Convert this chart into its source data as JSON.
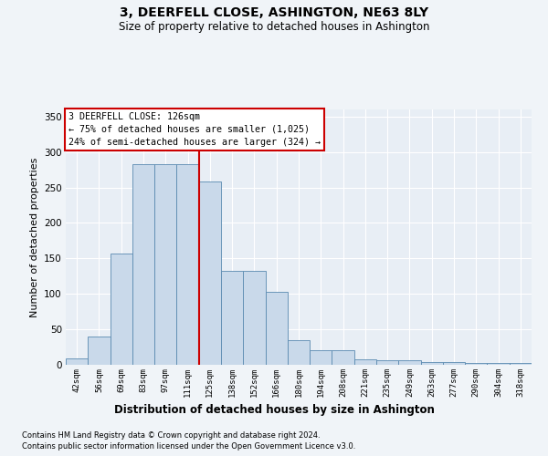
{
  "title": "3, DEERFELL CLOSE, ASHINGTON, NE63 8LY",
  "subtitle": "Size of property relative to detached houses in Ashington",
  "xlabel": "Distribution of detached houses by size in Ashington",
  "ylabel": "Number of detached properties",
  "bar_labels": [
    "42sqm",
    "56sqm",
    "69sqm",
    "83sqm",
    "97sqm",
    "111sqm",
    "125sqm",
    "138sqm",
    "152sqm",
    "166sqm",
    "180sqm",
    "194sqm",
    "208sqm",
    "221sqm",
    "235sqm",
    "249sqm",
    "263sqm",
    "277sqm",
    "290sqm",
    "304sqm",
    "318sqm"
  ],
  "bar_values": [
    9,
    40,
    157,
    283,
    283,
    283,
    258,
    133,
    133,
    103,
    35,
    20,
    20,
    8,
    6,
    6,
    4,
    4,
    2,
    2,
    2
  ],
  "bar_color": "#c9d9ea",
  "bar_edge_color": "#5a8ab0",
  "vline_index": 6,
  "vline_label": "3 DEERFELL CLOSE: 126sqm",
  "annotation_line1": "← 75% of detached houses are smaller (1,025)",
  "annotation_line2": "24% of semi-detached houses are larger (324) →",
  "vline_color": "#cc0000",
  "annotation_border_color": "#cc0000",
  "footer1": "Contains HM Land Registry data © Crown copyright and database right 2024.",
  "footer2": "Contains public sector information licensed under the Open Government Licence v3.0.",
  "ylim": [
    0,
    360
  ],
  "yticks": [
    0,
    50,
    100,
    150,
    200,
    250,
    300,
    350
  ],
  "fig_bg_color": "#f0f4f8",
  "plot_bg_color": "#e8eef5"
}
